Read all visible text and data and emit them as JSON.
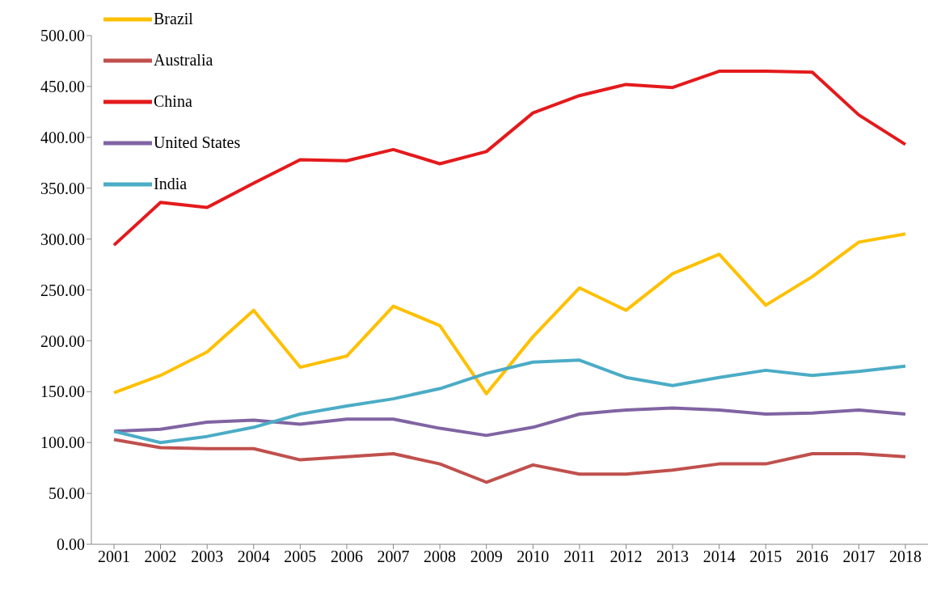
{
  "chart_data": {
    "type": "line",
    "categories": [
      "2001",
      "2002",
      "2003",
      "2004",
      "2005",
      "2006",
      "2007",
      "2008",
      "2009",
      "2010",
      "2011",
      "2012",
      "2013",
      "2014",
      "2015",
      "2016",
      "2017",
      "2018"
    ],
    "series": [
      {
        "name": "Brazil",
        "color": "#ffc000",
        "values": [
          149,
          166,
          189,
          230,
          174,
          185,
          234,
          215,
          148,
          204,
          252,
          230,
          266,
          285,
          235,
          263,
          297,
          305
        ]
      },
      {
        "name": "Australia",
        "color": "#c0504d",
        "values": [
          103,
          95,
          94,
          94,
          83,
          86,
          89,
          79,
          61,
          78,
          69,
          69,
          73,
          79,
          79,
          89,
          89,
          86
        ]
      },
      {
        "name": "China",
        "color": "#e41a1c",
        "values": [
          294,
          336,
          331,
          355,
          378,
          377,
          388,
          374,
          386,
          424,
          441,
          452,
          449,
          465,
          465,
          464,
          422,
          393
        ]
      },
      {
        "name": "United States",
        "color": "#8064a2",
        "values": [
          111,
          113,
          120,
          122,
          118,
          123,
          123,
          114,
          107,
          115,
          128,
          132,
          134,
          132,
          128,
          129,
          132,
          128
        ]
      },
      {
        "name": "India",
        "color": "#4bacc6",
        "values": [
          111,
          100,
          106,
          115,
          128,
          136,
          143,
          153,
          168,
          179,
          181,
          164,
          156,
          164,
          171,
          166,
          170,
          175
        ]
      }
    ],
    "ylim": [
      0,
      500
    ],
    "yticks": [
      {
        "value": 0,
        "label": "0.00"
      },
      {
        "value": 50,
        "label": "50.00"
      },
      {
        "value": 100,
        "label": "100.00"
      },
      {
        "value": 150,
        "label": "150.00"
      },
      {
        "value": 200,
        "label": "200.00"
      },
      {
        "value": 250,
        "label": "250.00"
      },
      {
        "value": 300,
        "label": "300.00"
      },
      {
        "value": 350,
        "label": "350.00"
      },
      {
        "value": 400,
        "label": "400.00"
      },
      {
        "value": 450,
        "label": "450.00"
      },
      {
        "value": 500,
        "label": "500.00"
      }
    ],
    "grid": false,
    "legend": "top left",
    "marker": "none",
    "line_style": "solid"
  }
}
